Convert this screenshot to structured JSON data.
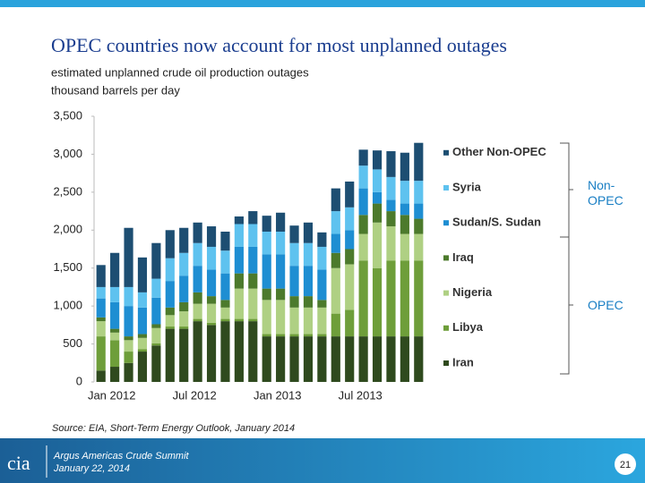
{
  "chart_data": {
    "type": "stacked_bar",
    "title": "OPEC countries now account for most unplanned outages",
    "subtitle": [
      "estimated unplanned crude oil production outages",
      "thousand barrels per day"
    ],
    "categories": [
      "Jan 2012",
      null,
      null,
      null,
      null,
      null,
      "Jul 2012",
      null,
      null,
      null,
      null,
      null,
      "Jan 2013",
      null,
      null,
      null,
      null,
      null,
      "Jul 2013",
      null,
      null,
      null,
      null,
      null
    ],
    "series": [
      {
        "name": "Iran",
        "color": "#2f4a1e",
        "values": [
          150,
          200,
          250,
          400,
          480,
          700,
          700,
          800,
          750,
          800,
          800,
          800,
          600,
          600,
          600,
          600,
          600,
          600,
          600,
          600,
          600,
          600,
          600,
          600
        ]
      },
      {
        "name": "Libya",
        "color": "#6e9e3a",
        "values": [
          450,
          350,
          150,
          30,
          30,
          30,
          30,
          30,
          30,
          30,
          30,
          30,
          30,
          30,
          30,
          30,
          30,
          300,
          350,
          1000,
          900,
          1000,
          1000,
          1000
        ]
      },
      {
        "name": "Nigeria",
        "color": "#afd083",
        "values": [
          200,
          100,
          150,
          150,
          200,
          150,
          200,
          200,
          250,
          150,
          400,
          400,
          450,
          450,
          350,
          350,
          350,
          600,
          600,
          350,
          600,
          450,
          350,
          350
        ]
      },
      {
        "name": "Iraq",
        "color": "#4c7a2c",
        "values": [
          50,
          50,
          50,
          50,
          50,
          100,
          120,
          150,
          100,
          100,
          200,
          200,
          150,
          150,
          150,
          150,
          100,
          200,
          200,
          250,
          250,
          200,
          250,
          200
        ]
      },
      {
        "name": "Sudan/S. Sudan",
        "color": "#1e8ed2",
        "values": [
          250,
          350,
          400,
          350,
          350,
          350,
          350,
          350,
          350,
          350,
          350,
          350,
          450,
          450,
          400,
          400,
          400,
          250,
          250,
          350,
          150,
          150,
          150,
          200
        ]
      },
      {
        "name": "Syria",
        "color": "#5ec2ef",
        "values": [
          150,
          200,
          250,
          200,
          250,
          300,
          300,
          300,
          300,
          300,
          300,
          300,
          300,
          300,
          300,
          300,
          300,
          300,
          300,
          300,
          300,
          300,
          300,
          300
        ]
      },
      {
        "name": "Other Non-OPEC",
        "color": "#1d4e72",
        "values": [
          290,
          450,
          780,
          460,
          470,
          370,
          330,
          270,
          270,
          250,
          100,
          170,
          210,
          250,
          230,
          270,
          190,
          300,
          340,
          210,
          250,
          340,
          370,
          500
        ]
      }
    ],
    "ylim": [
      0,
      3500
    ],
    "yticks": [
      0,
      500,
      {
        "value": 1000,
        "label": "1,000"
      },
      {
        "value": 1500,
        "label": "1,500"
      },
      {
        "value": 2000,
        "label": "2,000"
      },
      {
        "value": 2500,
        "label": "2,500"
      },
      {
        "value": 3000,
        "label": "3,000"
      },
      {
        "value": 3500,
        "label": "3,500"
      }
    ],
    "grid": false,
    "legend": "right",
    "groups": [
      "Non-OPEC",
      "OPEC"
    ],
    "source": "Source: EIA, Short-Term Energy Outlook, January 2014"
  },
  "footer": {
    "logo": "cia",
    "event": "Argus Americas Crude Summit",
    "date": "January 22, 2014",
    "page": "21"
  }
}
